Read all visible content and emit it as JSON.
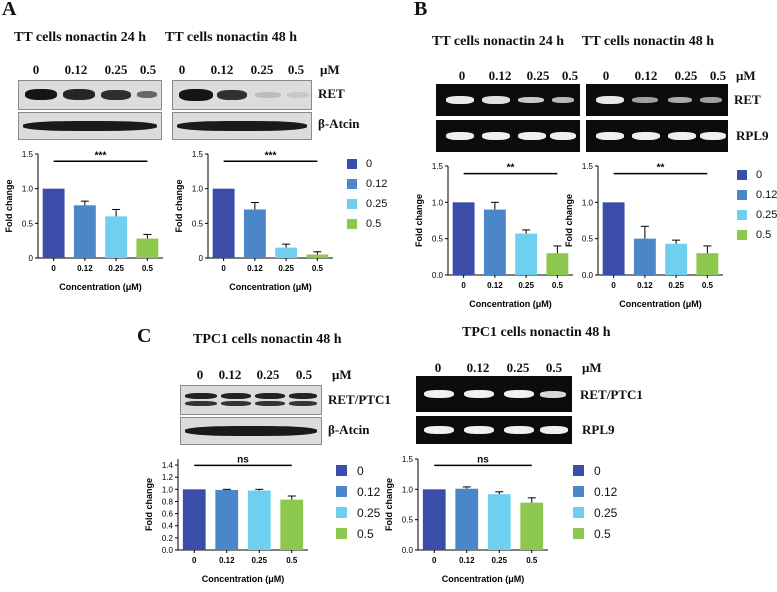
{
  "panels": {
    "A": {
      "letter": "A",
      "title_left": "TT cells nonactin 24 h",
      "title_right": "TT cells nonactin 48 h",
      "unit": "μM",
      "row1": "RET",
      "row2": "β-Atcin"
    },
    "B": {
      "letter": "B",
      "title_left": "TT cells nonactin 24 h",
      "title_right": "TT cells nonactin 48 h",
      "unit": "μM",
      "row1": "RET",
      "row2": "RPL9"
    },
    "C": {
      "letter": "C",
      "title_left": "TPC1 cells nonactin 48 h",
      "title_right": "TPC1 cells nonactin 48 h",
      "unit": "μM",
      "row1": "RET/PTC1",
      "row2": "β-Atcin",
      "row1_right": "RET/PTC1",
      "row2_right": "RPL9"
    }
  },
  "concentrations": [
    "0",
    "0.12",
    "0.25",
    "0.5"
  ],
  "colors": {
    "c0": "#3a4da8",
    "c012": "#4a86c8",
    "c025": "#6fcfef",
    "c05": "#8cc84e"
  },
  "legend": {
    "labels": [
      "0",
      "0.12",
      "0.25",
      "0.5"
    ]
  },
  "chart_data": [
    {
      "id": "A1",
      "type": "bar",
      "categories": [
        "0",
        "0.12",
        "0.25",
        "0.5"
      ],
      "values": [
        1.0,
        0.76,
        0.6,
        0.28
      ],
      "errors": [
        0.0,
        0.06,
        0.1,
        0.06
      ],
      "ylim": [
        0,
        1.5
      ],
      "yticks": [
        "0",
        "0.5",
        "1.0",
        "1.5"
      ],
      "ylabel": "Fold change",
      "xlabel": "Concentration (μM)",
      "sig": "***"
    },
    {
      "id": "A2",
      "type": "bar",
      "categories": [
        "0",
        "0.12",
        "0.25",
        "0.5"
      ],
      "values": [
        1.0,
        0.7,
        0.15,
        0.05
      ],
      "errors": [
        0.0,
        0.1,
        0.05,
        0.04
      ],
      "ylim": [
        0,
        1.5
      ],
      "yticks": [
        "0",
        "0.5",
        "1.0",
        "1.5"
      ],
      "ylabel": "Fold change",
      "xlabel": "Concentration (μM)",
      "sig": "***"
    },
    {
      "id": "B1",
      "type": "bar",
      "categories": [
        "0",
        "0.12",
        "0.25",
        "0.5"
      ],
      "values": [
        1.0,
        0.9,
        0.57,
        0.3
      ],
      "errors": [
        0.0,
        0.1,
        0.05,
        0.1
      ],
      "ylim": [
        0,
        1.5
      ],
      "yticks": [
        "0.0",
        "0.5",
        "1.0",
        "1.5"
      ],
      "ylabel": "Fold change",
      "xlabel": "Concentration (μM)",
      "sig": "**"
    },
    {
      "id": "B2",
      "type": "bar",
      "categories": [
        "0",
        "0.12",
        "0.25",
        "0.5"
      ],
      "values": [
        1.0,
        0.5,
        0.43,
        0.3
      ],
      "errors": [
        0.0,
        0.17,
        0.05,
        0.1
      ],
      "ylim": [
        0,
        1.5
      ],
      "yticks": [
        "0.0",
        "0.5",
        "1.0",
        "1.5"
      ],
      "ylabel": "Fold change",
      "xlabel": "Concentration (μM)",
      "sig": "**"
    },
    {
      "id": "C1",
      "type": "bar",
      "categories": [
        "0",
        "0.12",
        "0.25",
        "0.5"
      ],
      "values": [
        1.0,
        0.99,
        0.98,
        0.83
      ],
      "errors": [
        0.0,
        0.01,
        0.02,
        0.06
      ],
      "ylim": [
        0,
        1.5
      ],
      "yticks": [
        "0.0",
        "0.2",
        "0.4",
        "0.6",
        "0.8",
        "1.0",
        "1.2",
        "1.4"
      ],
      "ylabel": "Fold change",
      "xlabel": "Concentration (μM)",
      "sig": "ns"
    },
    {
      "id": "C2",
      "type": "bar",
      "categories": [
        "0",
        "0.12",
        "0.25",
        "0.5"
      ],
      "values": [
        1.0,
        1.01,
        0.92,
        0.78
      ],
      "errors": [
        0.0,
        0.03,
        0.04,
        0.08
      ],
      "ylim": [
        0,
        1.5
      ],
      "yticks": [
        "0.0",
        "0.5",
        "1.0",
        "1.5"
      ],
      "ylabel": "Fold change",
      "xlabel": "Concentration (μM)",
      "sig": "ns"
    }
  ]
}
